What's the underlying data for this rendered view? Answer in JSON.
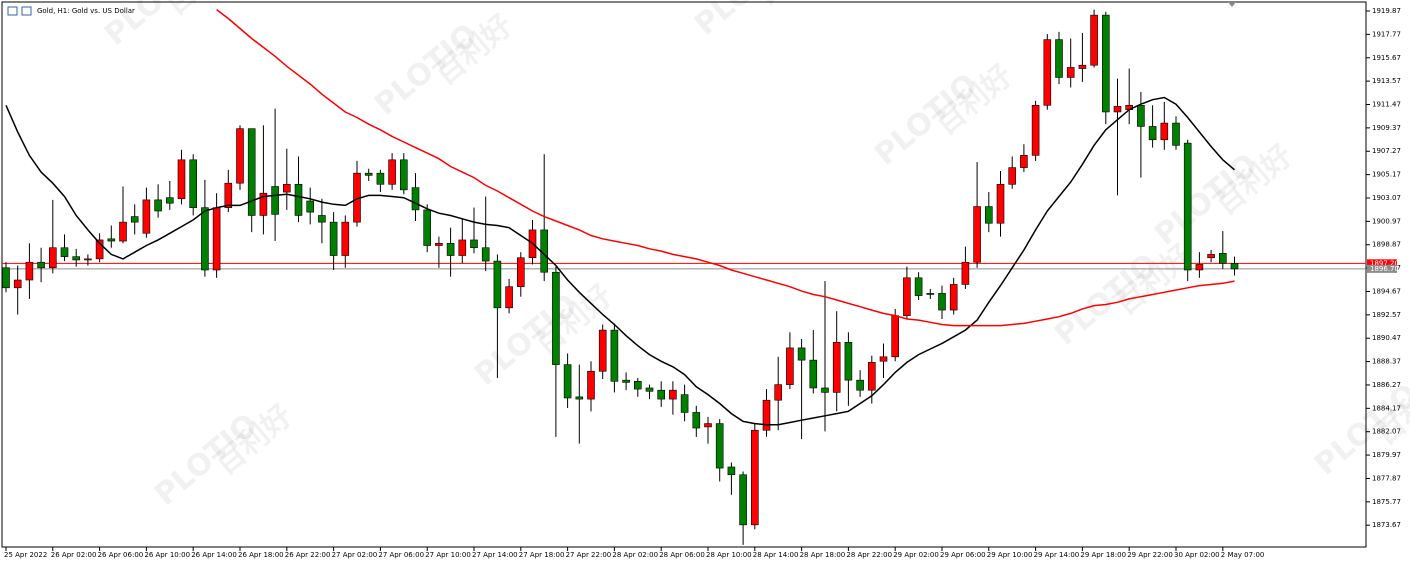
{
  "chart_data": {
    "type": "candlestick",
    "title": "Gold, H1:  Gold vs. US Dollar",
    "categories": [
      "25 Apr 2022",
      null,
      null,
      null,
      "26 Apr 02:00",
      null,
      null,
      null,
      "26 Apr 06:00",
      null,
      null,
      null,
      "26 Apr 10:00",
      null,
      null,
      null,
      "26 Apr 14:00",
      null,
      null,
      null,
      "26 Apr 18:00",
      null,
      null,
      null,
      "26 Apr 22:00",
      null,
      null,
      null,
      "27 Apr 02:00",
      null,
      null,
      null,
      "27 Apr 06:00",
      null,
      null,
      null,
      "27 Apr 10:00",
      null,
      null,
      null,
      "27 Apr 14:00",
      null,
      null,
      null,
      "27 Apr 18:00",
      null,
      null,
      null,
      "27 Apr 22:00",
      null,
      null,
      null,
      "28 Apr 02:00",
      null,
      null,
      null,
      "28 Apr 06:00",
      null,
      null,
      null,
      "28 Apr 10:00",
      null,
      null,
      null,
      "28 Apr 14:00",
      null,
      null,
      null,
      "28 Apr 18:00",
      null,
      null,
      null,
      "28 Apr 22:00",
      null,
      null,
      null,
      "29 Apr 02:00",
      null,
      null,
      null,
      "29 Apr 06:00",
      null,
      null,
      null,
      "29 Apr 10:00",
      null,
      null,
      null,
      "29 Apr 14:00",
      null,
      null,
      null,
      "29 Apr 18:00",
      null,
      null,
      null,
      "29 Apr 22:00",
      null,
      null,
      null,
      "30 Apr 02:00",
      null,
      null,
      null,
      "2 May 07:00",
      null
    ],
    "open": [
      1896.8,
      1895.0,
      1895.7,
      1897.3,
      1896.8,
      1898.6,
      1897.8,
      1897.5,
      1897.6,
      1899.4,
      1899.2,
      1901.4,
      1899.9,
      1902.9,
      1903.1,
      1903.0,
      1906.5,
      1902.2,
      1896.6,
      1902.2,
      1904.4,
      1909.3,
      1901.5,
      1904.1,
      1903.6,
      1904.3,
      1902.8,
      1901.5,
      1900.9,
      1897.9,
      1900.9,
      1905.3,
      1905.3,
      1904.3,
      1906.5,
      1904.0,
      1902.0,
      1898.8,
      1899.0,
      1897.9,
      1899.3,
      1898.6,
      1897.4,
      1893.2,
      1895.1,
      1897.7,
      1900.2,
      1896.4,
      1888.1,
      1885.2,
      1885.0,
      1887.5,
      1891.2,
      1886.7,
      1886.6,
      1886.0,
      1885.8,
      1885.0,
      1885.4,
      1883.8,
      1882.5,
      1882.8,
      1878.9,
      1878.2,
      1873.7,
      1882.2,
      1884.9,
      1886.3,
      1889.6,
      1888.5,
      1886.0,
      1885.6,
      1890.1,
      1886.7,
      1885.8,
      1888.4,
      1888.8,
      1892.5,
      1895.9,
      1894.5,
      1894.5,
      1893.0,
      1895.3,
      1897.3,
      1902.3,
      1900.8,
      1904.3,
      1905.8,
      1906.9,
      1911.4,
      1917.3,
      1913.9,
      1914.7,
      1915.0,
      1919.5,
      1910.8,
      1911.0,
      1911.4,
      1909.5,
      1908.3,
      1909.8,
      1908.0,
      1896.6,
      1897.7,
      1898.1,
      1897.2
    ],
    "high": [
      1897.3,
      1897.0,
      1899.0,
      1898.6,
      1902.9,
      1899.8,
      1898.5,
      1898.0,
      1899.9,
      1900.6,
      1904.1,
      1902.5,
      1904.0,
      1904.3,
      1904.6,
      1907.4,
      1907.0,
      1904.7,
      1903.5,
      1905.6,
      1909.6,
      1909.3,
      1909.6,
      1911.1,
      1907.5,
      1906.8,
      1904.0,
      1903.0,
      1901.8,
      1901.5,
      1906.4,
      1905.7,
      1905.6,
      1907.1,
      1907.1,
      1905.3,
      1902.5,
      1899.6,
      1900.4,
      1901.2,
      1902.2,
      1903.2,
      1898.0,
      1895.8,
      1898.2,
      1901.1,
      1907.0,
      1896.9,
      1889.1,
      1888.1,
      1888.4,
      1891.7,
      1891.8,
      1887.4,
      1886.9,
      1886.3,
      1886.6,
      1886.6,
      1886.3,
      1884.4,
      1883.4,
      1883.2,
      1879.3,
      1878.5,
      1882.8,
      1885.9,
      1888.8,
      1891.0,
      1890.4,
      1891.2,
      1895.6,
      1892.9,
      1891.0,
      1887.6,
      1888.9,
      1890.0,
      1893.1,
      1896.9,
      1896.4,
      1894.9,
      1895.2,
      1895.9,
      1898.7,
      1906.3,
      1903.6,
      1905.5,
      1906.8,
      1907.9,
      1911.8,
      1917.8,
      1918.0,
      1917.4,
      1917.9,
      1920.0,
      1919.8,
      1913.8,
      1914.7,
      1912.6,
      1911.4,
      1911.7,
      1910.4,
      1908.3,
      1898.2,
      1898.4,
      1900.1,
      1897.8
    ],
    "low": [
      1894.6,
      1892.6,
      1894.0,
      1895.5,
      1896.3,
      1897.4,
      1896.9,
      1897.0,
      1897.3,
      1898.6,
      1899.0,
      1899.8,
      1899.5,
      1901.3,
      1902.0,
      1902.5,
      1901.5,
      1896.0,
      1895.9,
      1901.8,
      1903.8,
      1900.0,
      1899.8,
      1899.2,
      1902.0,
      1900.9,
      1900.7,
      1899.0,
      1896.6,
      1896.8,
      1900.5,
      1904.6,
      1903.6,
      1903.8,
      1903.4,
      1901.0,
      1898.2,
      1896.8,
      1896.0,
      1897.2,
      1898.1,
      1896.5,
      1886.9,
      1892.7,
      1894.2,
      1897.1,
      1895.6,
      1881.6,
      1884.2,
      1881.0,
      1883.9,
      1886.8,
      1885.6,
      1885.8,
      1885.2,
      1885.0,
      1884.3,
      1883.6,
      1883.0,
      1881.6,
      1881.0,
      1877.6,
      1876.4,
      1871.9,
      1873.3,
      1881.6,
      1882.2,
      1885.9,
      1881.4,
      1885.5,
      1882.1,
      1883.9,
      1884.4,
      1885.2,
      1884.6,
      1886.9,
      1888.4,
      1892.2,
      1893.9,
      1894.0,
      1892.2,
      1892.6,
      1894.9,
      1896.8,
      1900.0,
      1899.6,
      1903.9,
      1905.4,
      1906.4,
      1911.0,
      1913.3,
      1913.0,
      1913.5,
      1914.8,
      1909.7,
      1903.3,
      1909.7,
      1904.9,
      1907.6,
      1907.4,
      1907.4,
      1895.6,
      1895.9,
      1897.3,
      1896.7,
      1896.1
    ],
    "close": [
      1895.0,
      1895.7,
      1897.3,
      1896.8,
      1898.6,
      1897.8,
      1897.5,
      1897.6,
      1899.3,
      1899.2,
      1900.9,
      1900.9,
      1902.9,
      1901.9,
      1902.6,
      1906.5,
      1902.2,
      1896.6,
      1902.2,
      1904.4,
      1909.3,
      1901.5,
      1903.5,
      1901.6,
      1904.3,
      1901.5,
      1901.8,
      1900.9,
      1897.9,
      1900.9,
      1905.3,
      1905.1,
      1904.3,
      1906.5,
      1903.8,
      1902.0,
      1898.8,
      1899.0,
      1897.9,
      1899.3,
      1898.6,
      1897.4,
      1893.2,
      1895.1,
      1897.7,
      1900.2,
      1896.4,
      1888.1,
      1885.1,
      1885.0,
      1887.5,
      1891.2,
      1886.6,
      1886.5,
      1885.9,
      1885.7,
      1885.0,
      1885.8,
      1883.8,
      1882.4,
      1882.8,
      1878.8,
      1878.2,
      1873.7,
      1882.2,
      1884.9,
      1886.3,
      1889.6,
      1888.5,
      1886.0,
      1885.6,
      1890.1,
      1886.7,
      1885.8,
      1888.3,
      1888.8,
      1892.5,
      1895.9,
      1894.3,
      1894.4,
      1893.0,
      1895.3,
      1897.3,
      1902.3,
      1900.8,
      1904.3,
      1905.8,
      1906.9,
      1911.4,
      1917.3,
      1913.9,
      1914.8,
      1915.0,
      1919.5,
      1910.8,
      1911.3,
      1911.4,
      1909.5,
      1908.3,
      1909.8,
      1907.8,
      1896.6,
      1897.1,
      1898.0,
      1897.2,
      1896.7
    ],
    "up_color": "#ff0000",
    "down_color": "#008000",
    "series": [
      {
        "color": "#000000",
        "values": [
          1911.4,
          1909.0,
          1906.9,
          1905.4,
          1904.4,
          1903.2,
          1901.5,
          1900.2,
          1899.0,
          1898.0,
          1897.6,
          1898.2,
          1898.8,
          1899.3,
          1899.9,
          1900.5,
          1901.1,
          1901.9,
          1902.2,
          1902.4,
          1902.4,
          1902.8,
          1903.2,
          1903.3,
          1903.4,
          1903.2,
          1903.0,
          1902.7,
          1902.5,
          1902.4,
          1903.0,
          1903.3,
          1903.3,
          1903.2,
          1903.1,
          1902.6,
          1902.1,
          1901.7,
          1901.5,
          1901.2,
          1900.9,
          1900.7,
          1900.6,
          1900.4,
          1899.7,
          1899.0,
          1898.0,
          1897.0,
          1895.7,
          1894.6,
          1893.6,
          1892.6,
          1891.7,
          1890.7,
          1889.8,
          1889.0,
          1888.4,
          1887.9,
          1887.2,
          1886.1,
          1885.4,
          1884.6,
          1883.7,
          1883.0,
          1882.8,
          1882.7,
          1882.7,
          1882.9,
          1883.1,
          1883.3,
          1883.5,
          1883.7,
          1883.9,
          1884.6,
          1885.3,
          1886.3,
          1887.4,
          1888.3,
          1889.0,
          1889.5,
          1890.0,
          1890.6,
          1891.2,
          1892.1,
          1893.7,
          1895.2,
          1896.8,
          1898.4,
          1900.2,
          1901.9,
          1903.2,
          1904.5,
          1906.1,
          1907.8,
          1909.2,
          1910.1,
          1911.0,
          1911.5,
          1911.9,
          1912.1,
          1911.5,
          1910.3,
          1909.0,
          1907.7,
          1906.5,
          1905.6
        ]
      },
      {
        "color": "#ff0000",
        "values": [
          null,
          null,
          null,
          null,
          null,
          null,
          null,
          null,
          null,
          null,
          null,
          null,
          null,
          null,
          null,
          null,
          null,
          null,
          1920.0,
          1919.2,
          1918.3,
          1917.4,
          1916.6,
          1915.8,
          1914.9,
          1914.1,
          1913.3,
          1912.4,
          1911.6,
          1910.8,
          1910.3,
          1909.7,
          1909.2,
          1908.6,
          1908.1,
          1907.6,
          1907.1,
          1906.6,
          1905.9,
          1905.4,
          1904.9,
          1904.2,
          1903.7,
          1903.1,
          1902.5,
          1901.9,
          1901.4,
          1901.0,
          1900.6,
          1900.2,
          1899.7,
          1899.4,
          1899.2,
          1899.0,
          1898.8,
          1898.5,
          1898.3,
          1898.0,
          1897.8,
          1897.6,
          1897.3,
          1897.0,
          1896.6,
          1896.3,
          1896.0,
          1895.7,
          1895.4,
          1895.1,
          1894.7,
          1894.4,
          1894.2,
          1893.9,
          1893.6,
          1893.3,
          1893.0,
          1892.7,
          1892.5,
          1892.2,
          1892.1,
          1891.9,
          1891.7,
          1891.6,
          1891.6,
          1891.6,
          1891.6,
          1891.6,
          1891.7,
          1891.8,
          1892.0,
          1892.2,
          1892.4,
          1892.7,
          1893.1,
          1893.4,
          1893.5,
          1893.7,
          1894.0,
          1894.2,
          1894.4,
          1894.6,
          1894.8,
          1895.0,
          1895.2,
          1895.3,
          1895.4,
          1895.6
        ]
      }
    ],
    "price_lines": [
      {
        "value": 1897.2,
        "label": "1897.20",
        "color": "#ff0000"
      },
      {
        "value": 1896.7,
        "label": "1896.70",
        "color": "#8c8c8c"
      }
    ],
    "ylim": [
      1871.71,
      1920.68
    ],
    "yticks": [
      1873.67,
      1875.77,
      1877.87,
      1879.97,
      1882.07,
      1884.17,
      1886.27,
      1888.37,
      1890.47,
      1892.57,
      1894.67,
      1896.77,
      1898.87,
      1900.97,
      1903.07,
      1905.17,
      1907.27,
      1909.37,
      1911.47,
      1913.57,
      1915.67,
      1917.77,
      1919.87
    ],
    "grid": false,
    "watermark": [
      "PLOTIO",
      "百利好"
    ]
  }
}
